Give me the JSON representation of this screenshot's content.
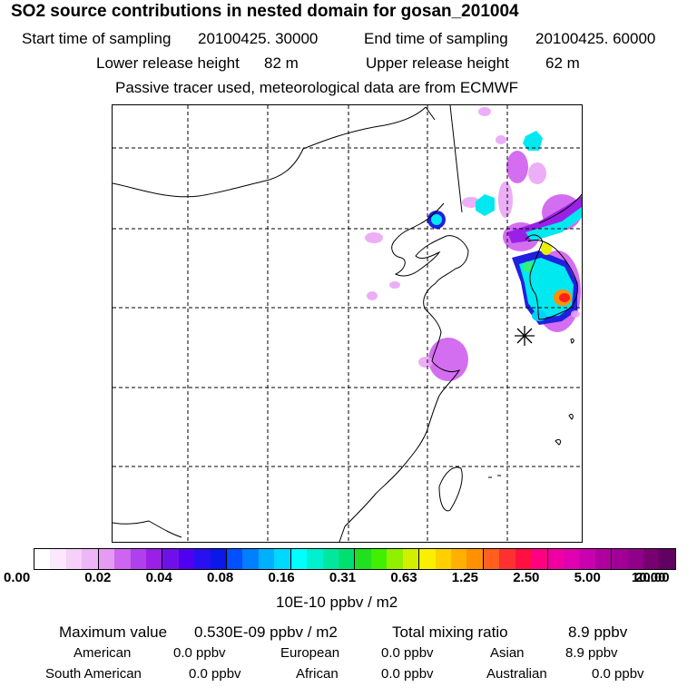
{
  "header": {
    "title": "SO2 source contributions in nested domain for gosan_201004",
    "start_label": "Start time of sampling",
    "start_value": "20100425. 30000",
    "end_label": "End time of sampling",
    "end_value": "20100425. 60000",
    "lower_label": "Lower release height",
    "lower_value": "82 m",
    "upper_label": "Upper release height",
    "upper_value": "62 m",
    "note": "Passive tracer used, meteorological data are from ECMWF"
  },
  "map": {
    "receptor_marker": "asterisk-icon",
    "plume_colors": {
      "faint": "#e9a0f5",
      "light": "#cc55ee",
      "purple": "#9a20e6",
      "blue": "#2020e0",
      "cyan": "#00e8f0",
      "aqua": "#00d0ff",
      "green": "#30f080",
      "yellow": "#e8f000",
      "orange": "#ff9000",
      "red": "#ff2020"
    }
  },
  "colorbar": {
    "colors": [
      "#ffffff",
      "#fbe8fd",
      "#f6d0fa",
      "#eeb6f7",
      "#e59af4",
      "#cc66f0",
      "#b040ec",
      "#9a20e6",
      "#7010e8",
      "#5000f0",
      "#2810f0",
      "#0a18e8",
      "#0050ff",
      "#0080ff",
      "#00b0ff",
      "#00d8ff",
      "#00ffff",
      "#00f0d0",
      "#00e8a0",
      "#00e070",
      "#20e020",
      "#40f000",
      "#90f000",
      "#d0f000",
      "#f8f000",
      "#ffd000",
      "#ffb000",
      "#ff9000",
      "#ff6020",
      "#ff3030",
      "#ff1040",
      "#ff0080",
      "#f000a0",
      "#e000b0",
      "#c800b0",
      "#b000a0",
      "#a00098",
      "#900088",
      "#780070",
      "#600060"
    ],
    "tick_labels": [
      "0.00",
      "0.02",
      "0.04",
      "0.08",
      "0.16",
      "0.31",
      "0.63",
      "1.25",
      "2.50",
      "5.00",
      "10.00",
      "20.00"
    ],
    "unit": "10E-10 ppbv / m2"
  },
  "summary": {
    "max_label": "Maximum value",
    "max_value": "0.530E-09 ppbv / m2",
    "total_label": "Total mixing ratio",
    "total_value": "8.9 ppbv",
    "regions": [
      {
        "name": "American",
        "value": "0.0 ppbv"
      },
      {
        "name": "European",
        "value": "0.0 ppbv"
      },
      {
        "name": "Asian",
        "value": "8.9 ppbv"
      },
      {
        "name": "South American",
        "value": "0.0 ppbv"
      },
      {
        "name": "African",
        "value": "0.0 ppbv"
      },
      {
        "name": "Australian",
        "value": "0.0 ppbv"
      }
    ]
  }
}
